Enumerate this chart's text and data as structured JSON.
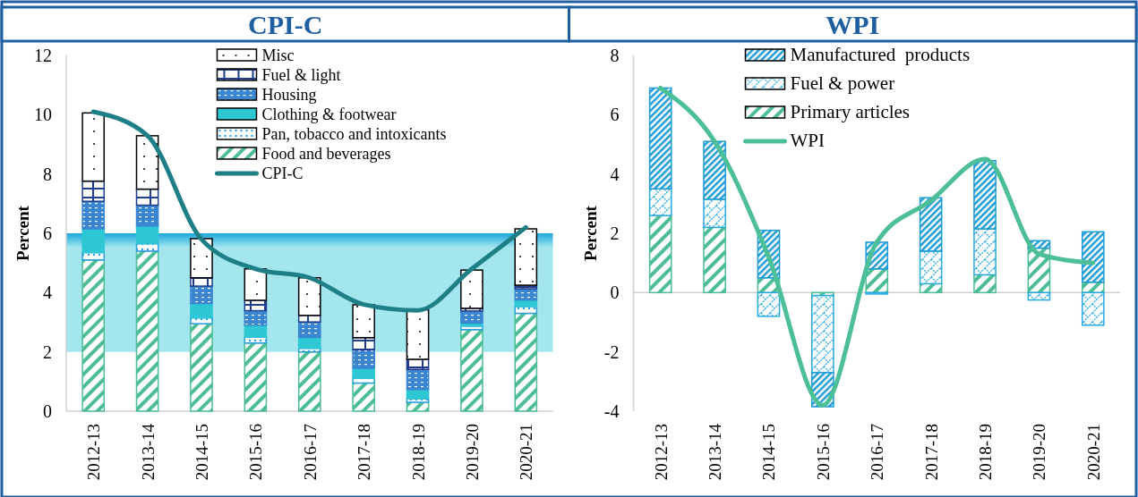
{
  "chart_data": [
    {
      "type": "bar",
      "title": "CPI-C",
      "ylabel": "Percent",
      "stacked": true,
      "legend": "top",
      "categories": [
        "2012-13",
        "2013-14",
        "2014-15",
        "2015-16",
        "2016-17",
        "2017-18",
        "2018-19",
        "2019-20",
        "2020-21"
      ],
      "ylim": [
        0,
        12
      ],
      "yticks": [
        0,
        2,
        4,
        6,
        8,
        10,
        12
      ],
      "bands": [
        {
          "axis": "y",
          "from": 2,
          "to": 6,
          "color": "#a3e6ee"
        }
      ],
      "series": [
        {
          "name": "Food and beverages",
          "color": "#4dbd95",
          "values": [
            5.1,
            5.4,
            2.95,
            2.3,
            2.0,
            0.95,
            0.3,
            2.75,
            3.3
          ]
        },
        {
          "name": "Pan, tobacco and intoxicants",
          "color": "#2b9ee0",
          "values": [
            0.25,
            0.25,
            0.2,
            0.2,
            0.12,
            0.16,
            0.12,
            0.12,
            0.23
          ]
        },
        {
          "name": "Clothing & footwear",
          "color": "#2ec8d4",
          "values": [
            0.8,
            0.6,
            0.48,
            0.4,
            0.37,
            0.34,
            0.31,
            0.1,
            0.22
          ]
        },
        {
          "name": "Housing",
          "color": "#3a86d0",
          "values": [
            0.93,
            0.7,
            0.59,
            0.49,
            0.52,
            0.62,
            0.68,
            0.41,
            0.38
          ]
        },
        {
          "name": "Fuel & light",
          "color": "#1f3d8c",
          "values": [
            0.68,
            0.54,
            0.28,
            0.35,
            0.22,
            0.41,
            0.34,
            0.09,
            0.12
          ]
        },
        {
          "name": "Misc",
          "color": "#000000",
          "values": [
            2.3,
            1.8,
            1.32,
            1.06,
            1.27,
            1.11,
            1.67,
            1.29,
            1.9
          ]
        },
        {
          "name": "CPI-C",
          "type": "line",
          "color": "#1e7f86",
          "values": [
            10.1,
            9.3,
            5.8,
            4.8,
            4.5,
            3.6,
            3.4,
            4.8,
            6.2
          ]
        }
      ]
    },
    {
      "type": "bar",
      "title": "WPI",
      "ylabel": "Percent",
      "stacked": true,
      "legend": "top",
      "categories": [
        "2012-13",
        "2013-14",
        "2014-15",
        "2015-16",
        "2016-17",
        "2017-18",
        "2018-19",
        "2019-20",
        "2020-21"
      ],
      "ylim": [
        -4,
        8
      ],
      "yticks": [
        -4,
        -2,
        0,
        2,
        4,
        6,
        8
      ],
      "series": [
        {
          "name": "Primary articles",
          "color": "#4dbd95",
          "values": [
            2.6,
            2.2,
            0.5,
            -0.1,
            0.8,
            0.3,
            0.6,
            1.5,
            0.35
          ]
        },
        {
          "name": "Fuel & power",
          "color": "#29a9e0",
          "values": [
            0.9,
            0.95,
            -0.8,
            -2.6,
            -0.05,
            1.1,
            1.55,
            -0.25,
            -1.1
          ]
        },
        {
          "name": "Manufactured  products",
          "color": "#1c9ad6",
          "values": [
            3.4,
            1.95,
            1.6,
            -1.15,
            0.9,
            1.8,
            2.3,
            0.25,
            1.7
          ]
        },
        {
          "name": "WPI",
          "type": "line",
          "color": "#4dbf97",
          "values": [
            6.9,
            5.1,
            1.2,
            -3.8,
            1.7,
            3.1,
            4.5,
            1.3,
            1.0
          ]
        }
      ]
    }
  ]
}
